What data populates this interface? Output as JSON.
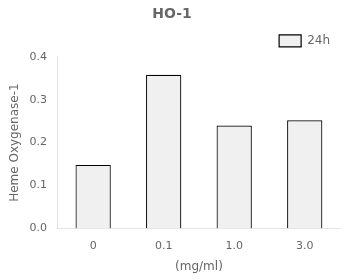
{
  "chart_data": {
    "type": "bar",
    "title": "HO-1",
    "xlabel": "(mg/ml)",
    "ylabel": "Heme Oxygenase-1",
    "categories": [
      "0",
      "0.1",
      "1.0",
      "3.0"
    ],
    "series": [
      {
        "name": "24h",
        "color": "#f0f0f0",
        "values": [
          0.148,
          0.358,
          0.24,
          0.252
        ]
      }
    ],
    "ylim": [
      0,
      0.4
    ],
    "yticks": [
      {
        "value": 0,
        "label": "0.0"
      },
      0.1,
      0.2,
      0.3,
      0.4
    ],
    "grid": false,
    "legend": "upper right"
  }
}
